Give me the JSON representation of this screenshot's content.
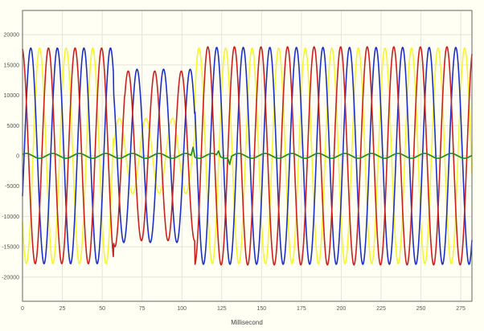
{
  "chart_data": {
    "type": "line",
    "title": "",
    "xlabel": "Millisecond",
    "ylabel": "",
    "xlim": [
      0,
      282
    ],
    "ylim": [
      -24000,
      24000
    ],
    "grid": true,
    "legend": "none",
    "x_ticks": [
      0,
      25,
      50,
      75,
      100,
      125,
      150,
      175,
      200,
      225,
      250,
      275
    ],
    "x_tick_labels": [
      "0",
      "25",
      "50",
      "75",
      "100",
      "125",
      "150",
      "175",
      "200",
      "225",
      "250",
      "275"
    ],
    "y_ticks": [
      20000,
      15000,
      10000,
      5000,
      0,
      -5000,
      -10000,
      -15000,
      -20000
    ],
    "y_tick_labels": [
      "20000",
      "15000",
      "10000",
      "5000",
      "0",
      "-5000",
      "-10000",
      "-15000",
      "-20000"
    ],
    "colors": {
      "background": "#fffff4",
      "plot_border": "#666666",
      "grid": "#e4e4dc",
      "phase_a": "#cc1f1f",
      "phase_b": "#1c2fc8",
      "phase_c": "#f5f532",
      "neutral": "#1a8a1a"
    },
    "series": [
      {
        "color": "#cc1f1f",
        "waveform": "sine",
        "period_ms": 16.667,
        "phase_deg": 98,
        "segments": [
          {
            "from_ms": 0,
            "to_ms": 57,
            "amplitude": 17800
          },
          {
            "from_ms": 57,
            "to_ms": 64,
            "amplitude": 15000
          },
          {
            "from_ms": 64,
            "to_ms": 108,
            "amplitude": 14000
          },
          {
            "from_ms": 108,
            "to_ms": 282,
            "amplitude": 18000
          }
        ]
      },
      {
        "color": "#1c2fc8",
        "waveform": "sine",
        "period_ms": 16.667,
        "phase_deg": -22,
        "segments": [
          {
            "from_ms": 0,
            "to_ms": 57,
            "amplitude": 17800
          },
          {
            "from_ms": 57,
            "to_ms": 108,
            "amplitude": 14300
          },
          {
            "from_ms": 108,
            "to_ms": 282,
            "amplitude": 17900
          }
        ]
      },
      {
        "color": "#f5f532",
        "waveform": "sine",
        "period_ms": 16.667,
        "phase_deg": 218,
        "segments": [
          {
            "from_ms": 0,
            "to_ms": 57,
            "amplitude": 17800
          },
          {
            "from_ms": 57,
            "to_ms": 108,
            "amplitude": 6200
          },
          {
            "from_ms": 108,
            "to_ms": 282,
            "amplitude": 17800
          }
        ]
      },
      {
        "color": "#1a8a1a",
        "waveform": "sine",
        "period_ms": 16.667,
        "phase_deg": 40,
        "segments": [
          {
            "from_ms": 0,
            "to_ms": 282,
            "amplitude": 400
          }
        ],
        "spikes": [
          {
            "x_ms": 107,
            "value": 1500
          },
          {
            "x_ms": 123,
            "value": 800
          },
          {
            "x_ms": 130,
            "value": -1200
          }
        ]
      }
    ]
  }
}
